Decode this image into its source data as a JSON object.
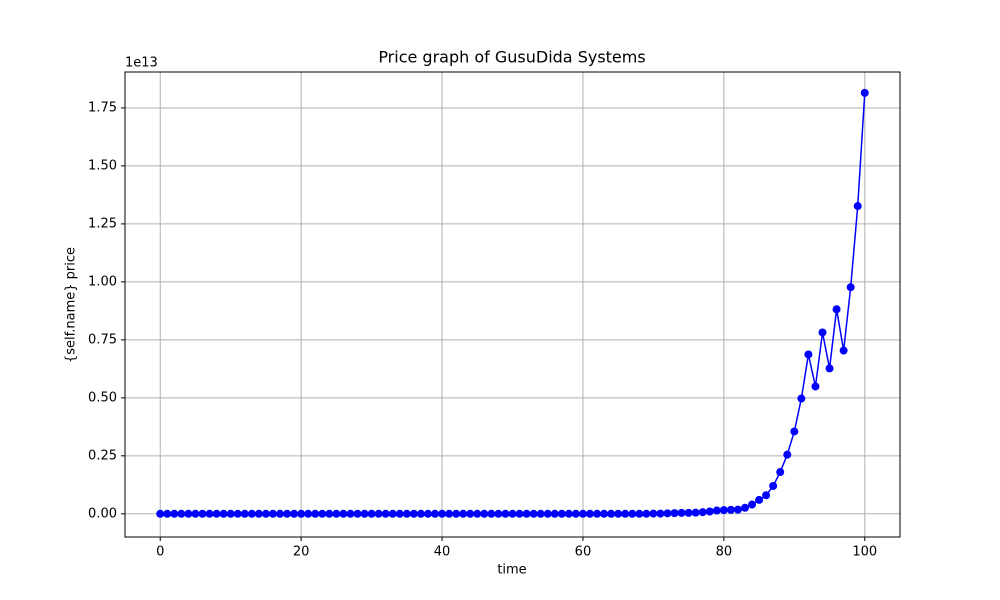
{
  "chart_data": {
    "type": "line",
    "title": "Price graph of GusuDida Systems",
    "x_label": "time",
    "y_label": "{self.name} price",
    "y_offset_label": "1e13",
    "x": [
      0,
      1,
      2,
      3,
      4,
      5,
      6,
      7,
      8,
      9,
      10,
      11,
      12,
      13,
      14,
      15,
      16,
      17,
      18,
      19,
      20,
      21,
      22,
      23,
      24,
      25,
      26,
      27,
      28,
      29,
      30,
      31,
      32,
      33,
      34,
      35,
      36,
      37,
      38,
      39,
      40,
      41,
      42,
      43,
      44,
      45,
      46,
      47,
      48,
      49,
      50,
      51,
      52,
      53,
      54,
      55,
      56,
      57,
      58,
      59,
      60,
      61,
      62,
      63,
      64,
      65,
      66,
      67,
      68,
      69,
      70,
      71,
      72,
      73,
      74,
      75,
      76,
      77,
      78,
      79,
      80,
      81,
      82,
      83,
      84,
      85,
      86,
      87,
      88,
      89,
      90,
      91,
      92,
      93,
      94,
      95,
      96,
      97,
      98,
      99,
      100
    ],
    "series": [
      {
        "color": "#0000ff",
        "values": [
          0,
          0,
          0,
          0,
          0,
          0,
          0,
          0,
          0,
          0,
          0,
          0,
          0,
          0,
          0,
          0,
          0,
          0,
          0,
          0,
          0,
          0,
          0,
          0,
          0,
          0,
          0,
          0,
          0,
          0,
          0,
          0,
          0,
          0,
          0,
          0,
          0,
          0,
          0,
          0,
          0,
          0,
          0,
          0,
          0,
          0,
          0,
          0,
          0,
          0,
          0,
          0,
          0,
          0,
          0,
          0,
          0,
          0,
          0,
          0,
          0,
          0,
          0,
          0,
          0,
          0,
          0,
          0,
          0,
          0,
          0.001,
          0.001,
          0.002,
          0.003,
          0.004,
          0.004,
          0.005,
          0.007,
          0.01,
          0.014,
          0.016,
          0.017,
          0.018,
          0.026,
          0.04,
          0.06,
          0.08,
          0.12,
          0.18,
          0.255,
          0.355,
          0.497,
          0.687,
          0.549,
          0.782,
          0.627,
          0.882,
          0.704,
          0.977,
          1.327,
          1.815
        ]
      }
    ],
    "xlim": [
      -5,
      105
    ],
    "ylim": [
      -0.1,
      1.905
    ],
    "xticks": [
      0,
      20,
      40,
      60,
      80,
      100
    ],
    "yticks": [
      {
        "value": 0,
        "label": "0.00"
      },
      {
        "value": 0.25,
        "label": "0.25"
      },
      {
        "value": 0.5,
        "label": "0.50"
      },
      {
        "value": 0.75,
        "label": "0.75"
      },
      {
        "value": 1,
        "label": "1.00"
      },
      {
        "value": 1.25,
        "label": "1.25"
      },
      {
        "value": 1.5,
        "label": "1.50"
      },
      {
        "value": 1.75,
        "label": "1.75"
      }
    ],
    "grid": true,
    "marker": "circle"
  }
}
